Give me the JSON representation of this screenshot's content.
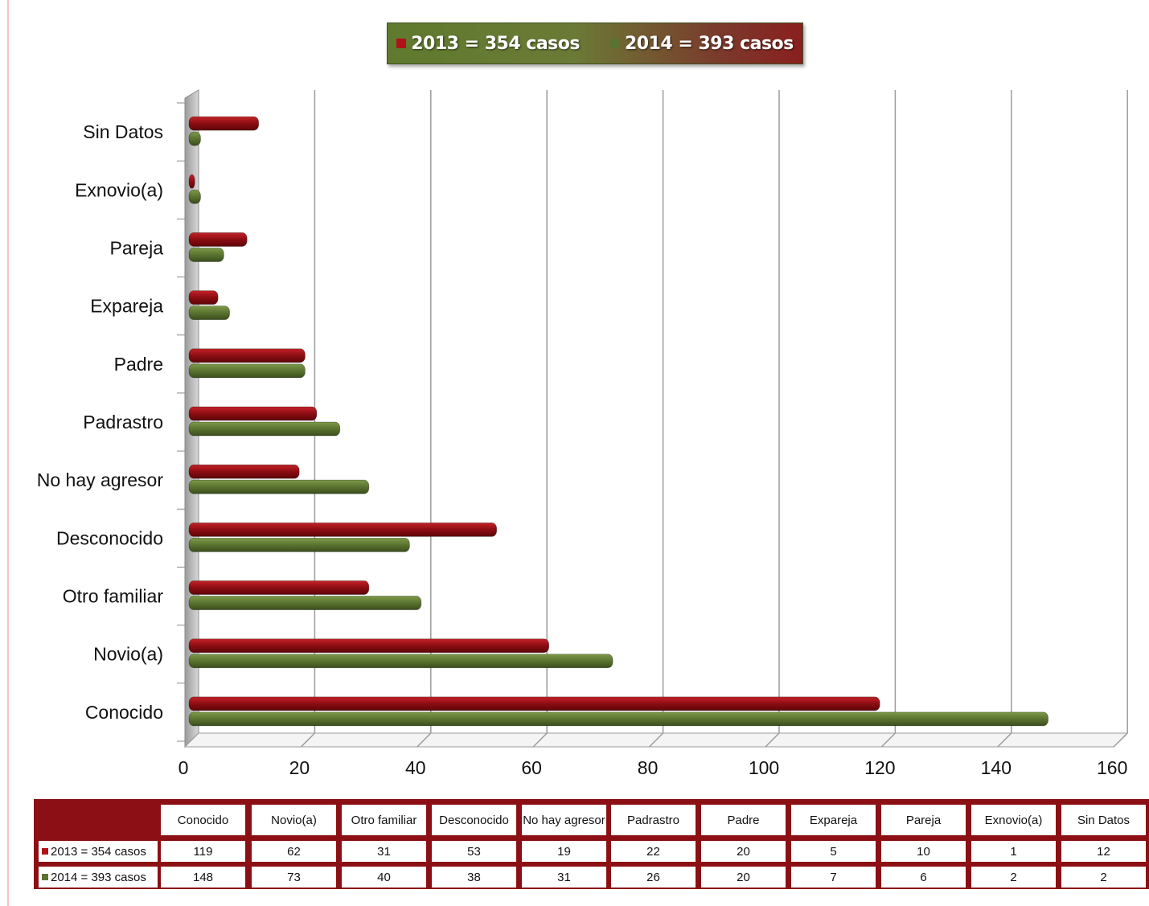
{
  "colors": {
    "series_2013": "#8b0d12",
    "series_2014": "#5a7330",
    "table_border": "#8b0f14"
  },
  "legend": {
    "items": [
      {
        "label": "2013 = 354 casos",
        "color": "#b01218"
      },
      {
        "label": "2014 = 393 casos",
        "color": "#5a7330"
      }
    ]
  },
  "chart_data": {
    "type": "bar",
    "orientation": "horizontal",
    "categories": [
      "Conocido",
      "Novio(a)",
      "Otro familiar",
      "Desconocido",
      "No hay agresor",
      "Padrastro",
      "Padre",
      "Expareja",
      "Pareja",
      "Exnovio(a)",
      "Sin Datos"
    ],
    "series": [
      {
        "name": "2013 = 354 casos",
        "values": [
          119,
          62,
          31,
          53,
          19,
          22,
          20,
          5,
          10,
          1,
          12
        ]
      },
      {
        "name": "2014 = 393 casos",
        "values": [
          148,
          73,
          40,
          38,
          31,
          26,
          20,
          7,
          6,
          2,
          2
        ]
      }
    ],
    "x_ticks": [
      "0",
      "20",
      "40",
      "60",
      "80",
      "100",
      "120",
      "140",
      "160"
    ],
    "xlim": [
      0,
      160
    ],
    "grid": true,
    "legend_position": "top-center",
    "data_table": true
  },
  "table": {
    "headers": [
      "Conocido",
      "Novio(a)",
      "Otro familiar",
      "Desconocido",
      "No hay agresor",
      "Padrastro",
      "Padre",
      "Expareja",
      "Pareja",
      "Exnovio(a)",
      "Sin Datos"
    ],
    "rows": [
      {
        "label": "2013 = 354 casos",
        "values": [
          "119",
          "62",
          "31",
          "53",
          "19",
          "22",
          "20",
          "5",
          "10",
          "1",
          "12"
        ]
      },
      {
        "label": "2014 = 393 casos",
        "values": [
          "148",
          "73",
          "40",
          "38",
          "31",
          "26",
          "20",
          "7",
          "6",
          "2",
          "2"
        ]
      }
    ]
  }
}
